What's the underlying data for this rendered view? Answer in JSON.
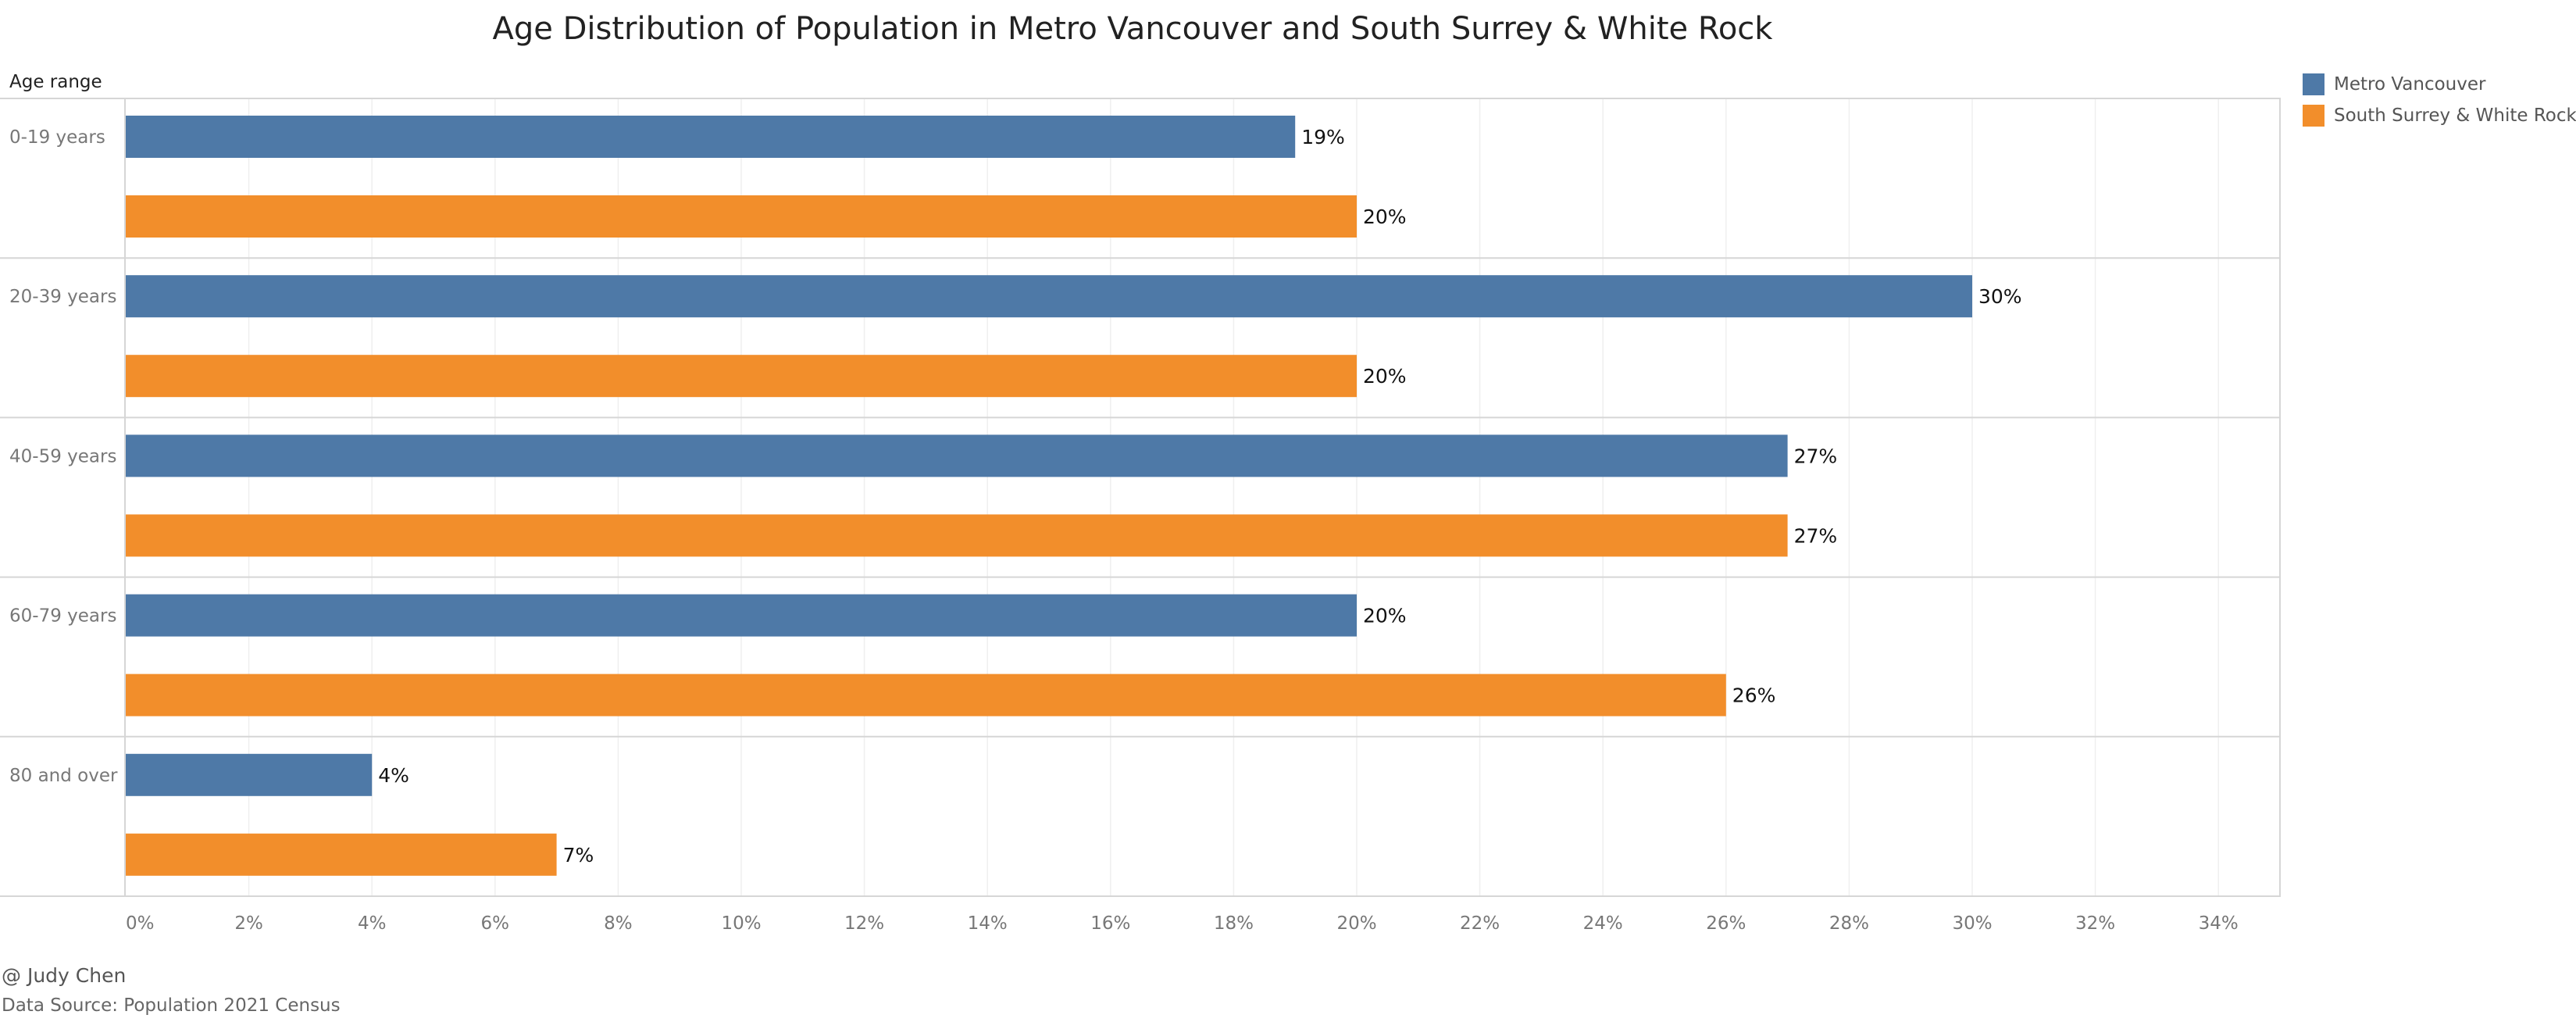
{
  "chart_data": {
    "type": "bar",
    "orientation": "horizontal",
    "title": "Age Distribution of Population in Metro Vancouver and South Surrey & White Rock",
    "ylabel": "Age range",
    "xlabel": "",
    "categories": [
      "0-19 years",
      "20-39 years",
      "40-59 years",
      "60-79 years",
      "80 and over"
    ],
    "series": [
      {
        "name": "Metro Vancouver",
        "color": "#4e79a7",
        "values": [
          19,
          30,
          27,
          20,
          4
        ],
        "labels": [
          "19%",
          "30%",
          "27%",
          "20%",
          "4%"
        ]
      },
      {
        "name": "South Surrey & White Rock",
        "color": "#f28e2b",
        "values": [
          20,
          20,
          27,
          26,
          7
        ],
        "labels": [
          "20%",
          "20%",
          "27%",
          "26%",
          "7%"
        ]
      }
    ],
    "xlim": [
      0,
      35
    ],
    "xticks": [
      0,
      2,
      4,
      6,
      8,
      10,
      12,
      14,
      16,
      18,
      20,
      22,
      24,
      26,
      28,
      30,
      32,
      34
    ],
    "xtick_labels": [
      "0%",
      "2%",
      "4%",
      "6%",
      "8%",
      "10%",
      "12%",
      "14%",
      "16%",
      "18%",
      "20%",
      "22%",
      "24%",
      "26%",
      "28%",
      "30%",
      "32%",
      "34%"
    ],
    "grid": true,
    "legend": "right"
  },
  "footer": {
    "credit": "@ Judy Chen",
    "source": "Data Source: Population 2021 Census"
  }
}
